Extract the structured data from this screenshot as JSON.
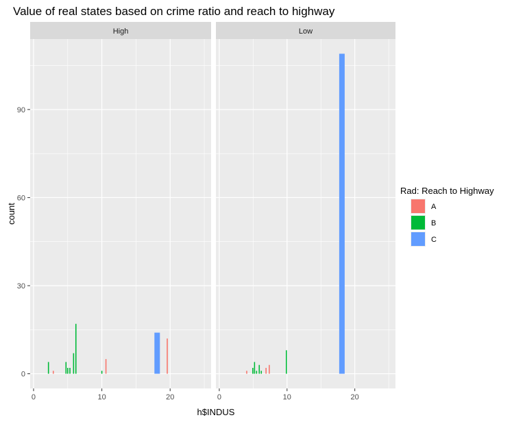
{
  "chart_data": {
    "type": "bar",
    "title": "Value of real states based on crime ratio and reach to highway",
    "xlabel": "h$INDUS",
    "ylabel": "count",
    "xlim": [
      -0.5,
      26
    ],
    "ylim": [
      -5,
      114
    ],
    "x_ticks": [
      0,
      10,
      20
    ],
    "y_ticks": [
      0,
      30,
      60,
      90
    ],
    "legend": {
      "title": "Rad: Reach to Highway",
      "position": "right",
      "items": [
        {
          "label": "A",
          "color": "#F8766D"
        },
        {
          "label": "B",
          "color": "#00BA38"
        },
        {
          "label": "C",
          "color": "#619CFF"
        }
      ]
    },
    "panels": [
      {
        "strip": "High",
        "bars": [
          {
            "x": 2.18,
            "count": 4,
            "group": "B"
          },
          {
            "x": 2.89,
            "count": 1,
            "group": "A"
          },
          {
            "x": 4.75,
            "count": 4,
            "group": "B"
          },
          {
            "x": 5.0,
            "count": 2,
            "group": "B"
          },
          {
            "x": 5.32,
            "count": 2,
            "group": "B"
          },
          {
            "x": 5.86,
            "count": 7,
            "group": "B"
          },
          {
            "x": 6.2,
            "count": 17,
            "group": "B"
          },
          {
            "x": 10.0,
            "count": 1,
            "group": "B"
          },
          {
            "x": 10.6,
            "count": 5,
            "group": "A"
          },
          {
            "x": 18.1,
            "count": 14,
            "group": "C"
          },
          {
            "x": 19.58,
            "count": 12,
            "group": "A"
          }
        ]
      },
      {
        "strip": "Low",
        "bars": [
          {
            "x": 4.05,
            "count": 1,
            "group": "A"
          },
          {
            "x": 4.95,
            "count": 2,
            "group": "B"
          },
          {
            "x": 5.2,
            "count": 4,
            "group": "B"
          },
          {
            "x": 5.5,
            "count": 1,
            "group": "B"
          },
          {
            "x": 5.9,
            "count": 3,
            "group": "B"
          },
          {
            "x": 6.2,
            "count": 1,
            "group": "B"
          },
          {
            "x": 6.9,
            "count": 2,
            "group": "A"
          },
          {
            "x": 7.38,
            "count": 3,
            "group": "A"
          },
          {
            "x": 9.9,
            "count": 8,
            "group": "B"
          },
          {
            "x": 18.1,
            "count": 109,
            "group": "C"
          }
        ]
      }
    ]
  }
}
